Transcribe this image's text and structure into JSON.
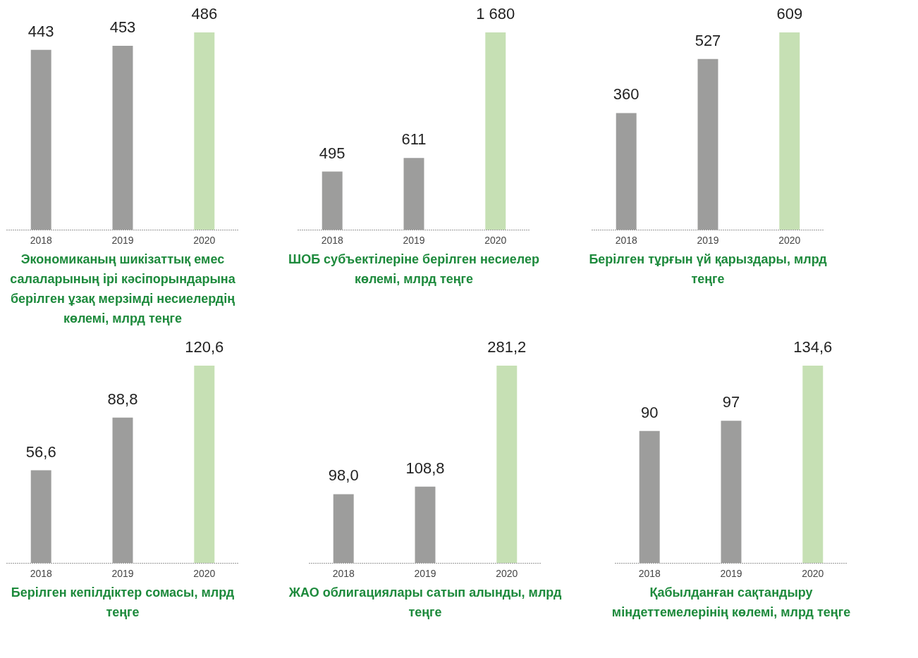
{
  "chart_data": [
    {
      "type": "bar",
      "title": "Экономиканың шикізаттық емес салаларының ірі кәсіпорындарына берілген ұзақ мерзімді несиелердің көлемі, млрд теңге",
      "categories": [
        "2018",
        "2019",
        "2020"
      ],
      "values": [
        443,
        453,
        486
      ],
      "value_labels": [
        "443",
        "453",
        "486"
      ],
      "colors": [
        "#9d9d9c",
        "#9d9d9c",
        "#c6e0b4"
      ]
    },
    {
      "type": "bar",
      "title": "ШОБ субъектілеріне берілген несиелер көлемі, млрд теңге",
      "categories": [
        "2018",
        "2019",
        "2020"
      ],
      "values": [
        495,
        611,
        1680
      ],
      "value_labels": [
        "495",
        "611",
        "1 680"
      ],
      "colors": [
        "#9d9d9c",
        "#9d9d9c",
        "#c6e0b4"
      ]
    },
    {
      "type": "bar",
      "title": "Берілген тұрғын үй қарыздары, млрд теңге",
      "categories": [
        "2018",
        "2019",
        "2020"
      ],
      "values": [
        360,
        527,
        609
      ],
      "value_labels": [
        "360",
        "527",
        "609"
      ],
      "colors": [
        "#9d9d9c",
        "#9d9d9c",
        "#c6e0b4"
      ]
    },
    {
      "type": "bar",
      "title": "Берілген кепілдіктер сомасы, млрд теңге",
      "categories": [
        "2018",
        "2019",
        "2020"
      ],
      "values": [
        56.6,
        88.8,
        120.6
      ],
      "value_labels": [
        "56,6",
        "88,8",
        "120,6"
      ],
      "colors": [
        "#9d9d9c",
        "#9d9d9c",
        "#c6e0b4"
      ]
    },
    {
      "type": "bar",
      "title": "ЖАО облигациялары сатып алынды, млрд теңге",
      "categories": [
        "2018",
        "2019",
        "2020"
      ],
      "values": [
        98.0,
        108.8,
        281.2
      ],
      "value_labels": [
        "98,0",
        "108,8",
        "281,2"
      ],
      "colors": [
        "#9d9d9c",
        "#9d9d9c",
        "#c6e0b4"
      ]
    },
    {
      "type": "bar",
      "title": "Қабылданған сақтандыру міндеттемелерінің көлемі, млрд теңге",
      "categories": [
        "2018",
        "2019",
        "2020"
      ],
      "values": [
        90,
        97,
        134.6
      ],
      "value_labels": [
        "90",
        "97",
        "134,6"
      ],
      "colors": [
        "#9d9d9c",
        "#9d9d9c",
        "#c6e0b4"
      ]
    }
  ]
}
